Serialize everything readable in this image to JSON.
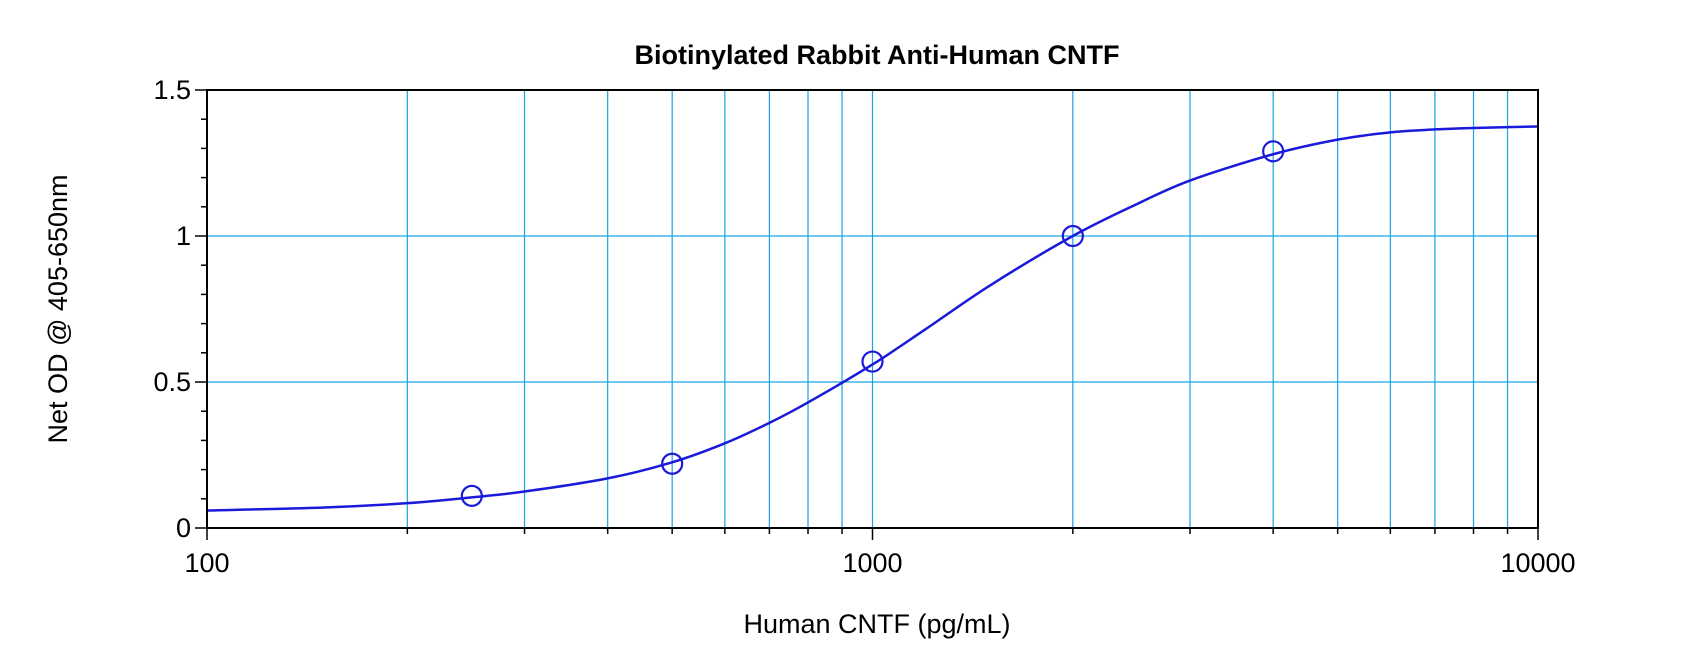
{
  "chart_data": {
    "type": "scatter",
    "title": "Biotinylated Rabbit Anti-Human CNTF",
    "xlabel": "Human CNTF (pg/mL)",
    "ylabel": "Net OD @ 405-650nm",
    "xscale": "log",
    "xlim": [
      100,
      10000
    ],
    "ylim": [
      0,
      1.5
    ],
    "x_ticks": [
      100,
      1000,
      10000
    ],
    "x_tick_labels": [
      "100",
      "1000",
      "10000"
    ],
    "y_ticks": [
      0,
      0.5,
      1,
      1.5
    ],
    "y_tick_labels": [
      "0",
      "0.5",
      "1",
      "1.5"
    ],
    "grid": true,
    "colors": {
      "series": "#1a1adb",
      "grid": "#1aa3e0",
      "frame": "#000000"
    },
    "points": {
      "x": [
        250,
        500,
        1000,
        2000,
        4000
      ],
      "y": [
        0.11,
        0.22,
        0.57,
        1.0,
        1.29
      ]
    },
    "fit_curve": {
      "x": [
        100,
        150,
        200,
        250,
        300,
        400,
        500,
        600,
        700,
        800,
        1000,
        1200,
        1500,
        2000,
        2500,
        3000,
        4000,
        5000,
        6000,
        7000,
        8000,
        10000
      ],
      "y": [
        0.06,
        0.07,
        0.085,
        0.105,
        0.125,
        0.17,
        0.225,
        0.29,
        0.36,
        0.43,
        0.56,
        0.68,
        0.83,
        1.0,
        1.11,
        1.19,
        1.28,
        1.33,
        1.355,
        1.365,
        1.37,
        1.375
      ]
    }
  }
}
